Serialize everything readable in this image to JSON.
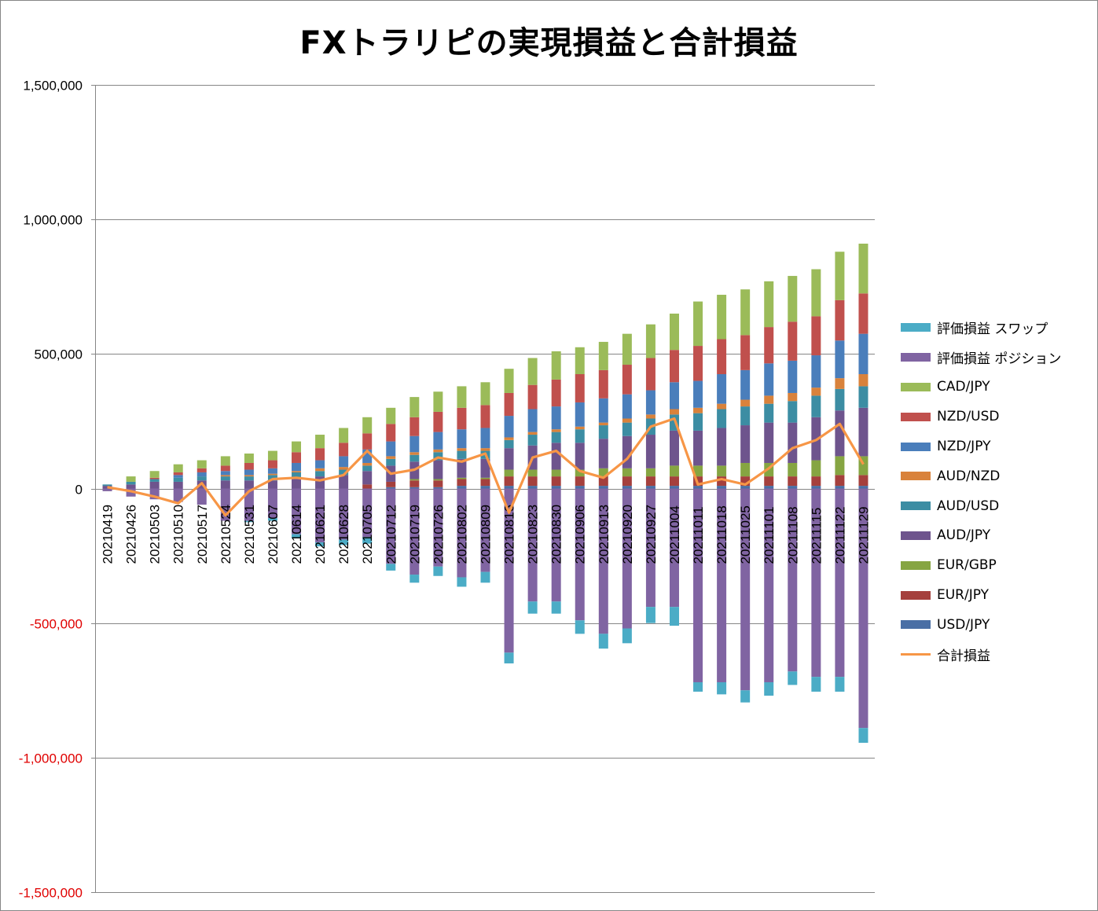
{
  "chart_data": {
    "type": "bar",
    "stacked": true,
    "title": "FXトラリピの実現損益と合計損益",
    "ylim": [
      -1500000,
      1500000
    ],
    "yticks": [
      1500000,
      1000000,
      500000,
      0,
      -500000,
      -1000000,
      -1500000
    ],
    "ytick_labels": [
      "1,500,000",
      "1,000,000",
      "500,000",
      "0",
      "-500,000",
      "-1,000,000",
      "-1,500,000"
    ],
    "negative_tick_color": "#e00000",
    "grid": true,
    "legend_position": "right",
    "categories": [
      "20210419",
      "20210426",
      "20210503",
      "20210510",
      "20210517",
      "20210524",
      "20210531",
      "20210607",
      "20210614",
      "20210621",
      "20210628",
      "20210705",
      "20210712",
      "20210719",
      "20210726",
      "20210802",
      "20210809",
      "20210816",
      "20210823",
      "20210830",
      "20210906",
      "20210913",
      "20210920",
      "20210927",
      "20211004",
      "20211011",
      "20211018",
      "20211025",
      "20211101",
      "20211108",
      "20211115",
      "20211122",
      "20211129"
    ],
    "series": [
      {
        "name": "USD/JPY",
        "color": "#4a6fa5",
        "values": [
          0,
          0,
          0,
          0,
          0,
          0,
          0,
          0,
          0,
          0,
          0,
          0,
          5000,
          5000,
          5000,
          10000,
          10000,
          10000,
          10000,
          10000,
          10000,
          10000,
          10000,
          10000,
          10000,
          10000,
          10000,
          10000,
          10000,
          10000,
          10000,
          10000,
          10000
        ]
      },
      {
        "name": "EUR/JPY",
        "color": "#a5403d",
        "values": [
          0,
          0,
          0,
          0,
          0,
          0,
          0,
          0,
          0,
          0,
          0,
          15000,
          20000,
          25000,
          25000,
          25000,
          25000,
          35000,
          35000,
          35000,
          35000,
          35000,
          35000,
          35000,
          35000,
          35000,
          35000,
          35000,
          35000,
          35000,
          35000,
          40000,
          40000
        ]
      },
      {
        "name": "EUR/GBP",
        "color": "#86a542",
        "values": [
          0,
          0,
          0,
          0,
          0,
          0,
          0,
          0,
          0,
          0,
          0,
          0,
          0,
          5000,
          5000,
          5000,
          5000,
          25000,
          25000,
          25000,
          25000,
          30000,
          30000,
          30000,
          40000,
          40000,
          40000,
          50000,
          50000,
          50000,
          60000,
          70000,
          70000
        ]
      },
      {
        "name": "AUD/JPY",
        "color": "#6e548d",
        "values": [
          10000,
          15000,
          25000,
          25000,
          30000,
          30000,
          30000,
          30000,
          40000,
          45000,
          50000,
          50000,
          60000,
          65000,
          70000,
          70000,
          70000,
          80000,
          90000,
          100000,
          100000,
          110000,
          120000,
          125000,
          130000,
          130000,
          140000,
          140000,
          150000,
          150000,
          160000,
          170000,
          180000
        ]
      },
      {
        "name": "AUD/USD",
        "color": "#3c8da3",
        "values": [
          5000,
          10000,
          10000,
          15000,
          15000,
          15000,
          15000,
          20000,
          20000,
          20000,
          20000,
          20000,
          25000,
          25000,
          30000,
          30000,
          30000,
          30000,
          40000,
          40000,
          50000,
          50000,
          50000,
          60000,
          60000,
          65000,
          70000,
          70000,
          70000,
          80000,
          80000,
          80000,
          80000
        ]
      },
      {
        "name": "AUD/NZD",
        "color": "#d9823b",
        "values": [
          0,
          0,
          0,
          0,
          0,
          5000,
          5000,
          5000,
          5000,
          10000,
          10000,
          10000,
          10000,
          10000,
          10000,
          10000,
          10000,
          10000,
          10000,
          10000,
          10000,
          10000,
          15000,
          15000,
          20000,
          20000,
          20000,
          25000,
          30000,
          30000,
          30000,
          40000,
          45000
        ]
      },
      {
        "name": "NZD/JPY",
        "color": "#4a7ebb",
        "values": [
          0,
          0,
          0,
          10000,
          15000,
          15000,
          20000,
          20000,
          30000,
          30000,
          40000,
          50000,
          55000,
          60000,
          65000,
          70000,
          75000,
          80000,
          85000,
          85000,
          90000,
          90000,
          90000,
          90000,
          100000,
          100000,
          110000,
          110000,
          120000,
          120000,
          120000,
          140000,
          150000
        ]
      },
      {
        "name": "NZD/USD",
        "color": "#c0504d",
        "values": [
          0,
          0,
          5000,
          10000,
          15000,
          20000,
          25000,
          30000,
          40000,
          45000,
          50000,
          60000,
          65000,
          70000,
          75000,
          80000,
          85000,
          85000,
          90000,
          100000,
          105000,
          105000,
          110000,
          120000,
          120000,
          130000,
          130000,
          130000,
          135000,
          145000,
          145000,
          150000,
          150000
        ]
      },
      {
        "name": "CAD/JPY",
        "color": "#9bbb59",
        "values": [
          0,
          20000,
          25000,
          30000,
          30000,
          35000,
          35000,
          35000,
          40000,
          50000,
          55000,
          60000,
          60000,
          75000,
          75000,
          80000,
          85000,
          90000,
          100000,
          105000,
          100000,
          105000,
          115000,
          125000,
          135000,
          165000,
          165000,
          170000,
          170000,
          170000,
          175000,
          180000,
          185000
        ]
      },
      {
        "name": "評価損益 ポジション",
        "color": "#8064a2",
        "values": [
          -10000,
          -30000,
          -40000,
          -50000,
          -60000,
          -120000,
          -120000,
          -110000,
          -170000,
          -200000,
          -190000,
          -180000,
          -280000,
          -320000,
          -290000,
          -330000,
          -310000,
          -610000,
          -420000,
          -420000,
          -490000,
          -540000,
          -520000,
          -440000,
          -440000,
          -720000,
          -720000,
          -750000,
          -720000,
          -680000,
          -700000,
          -700000,
          -890000
        ]
      },
      {
        "name": "評価損益 スワップ",
        "color": "#4bacc6",
        "values": [
          0,
          0,
          0,
          0,
          0,
          0,
          -5000,
          -10000,
          -15000,
          -15000,
          -20000,
          -25000,
          -25000,
          -30000,
          -35000,
          -35000,
          -40000,
          -40000,
          -45000,
          -45000,
          -50000,
          -55000,
          -55000,
          -60000,
          -70000,
          -35000,
          -45000,
          -45000,
          -50000,
          -50000,
          -55000,
          -55000,
          -55000
        ]
      }
    ],
    "line_series": {
      "name": "合計損益",
      "color": "#f79646",
      "values": [
        5000,
        -10000,
        -30000,
        -55000,
        20000,
        -100000,
        -10000,
        35000,
        40000,
        30000,
        50000,
        140000,
        55000,
        70000,
        115000,
        100000,
        130000,
        -90000,
        115000,
        140000,
        65000,
        40000,
        110000,
        230000,
        260000,
        15000,
        35000,
        15000,
        75000,
        150000,
        180000,
        240000,
        90000
      ]
    },
    "legend_order": [
      "評価損益 スワップ",
      "評価損益 ポジション",
      "CAD/JPY",
      "NZD/USD",
      "NZD/JPY",
      "AUD/NZD",
      "AUD/USD",
      "AUD/JPY",
      "EUR/GBP",
      "EUR/JPY",
      "USD/JPY",
      "合計損益"
    ]
  }
}
